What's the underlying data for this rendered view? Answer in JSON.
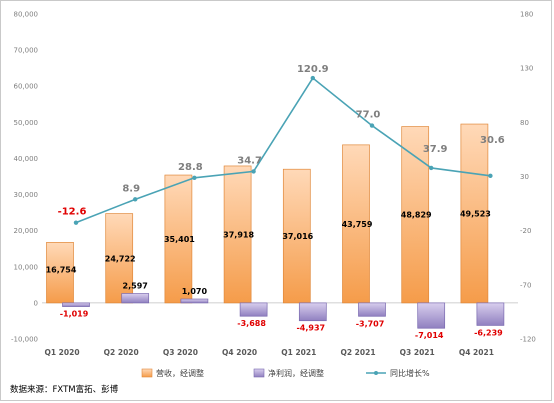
{
  "chart_data": {
    "type": "bar",
    "categories": [
      "Q1 2020",
      "Q2 2020",
      "Q3 2020",
      "Q4 2020",
      "Q1 2021",
      "Q2 2021",
      "Q3 2021",
      "Q4 2021"
    ],
    "series": [
      {
        "name": "营收，经调整",
        "kind": "bar",
        "axis": "left",
        "color": "#f4a460",
        "values": [
          16754,
          24722,
          35401,
          37918,
          37016,
          43759,
          48829,
          49523
        ]
      },
      {
        "name": "净利润，经调整",
        "kind": "bar",
        "axis": "left",
        "color": "#9b8ac4",
        "values": [
          -1019,
          2597,
          1070,
          -3688,
          -4937,
          -3707,
          -7014,
          -6239
        ]
      },
      {
        "name": "同比增长%",
        "kind": "line",
        "axis": "right",
        "color": "#4aa3b5",
        "values": [
          -12.6,
          8.9,
          28.8,
          34.7,
          120.9,
          77.0,
          37.9,
          30.6
        ]
      }
    ],
    "labels": {
      "revenue": [
        "16,754",
        "24,722",
        "35,401",
        "37,918",
        "37,016",
        "43,759",
        "48,829",
        "49,523"
      ],
      "net_profit": [
        "-1,019",
        "2,597",
        "1,070",
        "-3,688",
        "-4,937",
        "-3,707",
        "-7,014",
        "-6,239"
      ],
      "yoy": [
        "-12.6",
        "8.9",
        "28.8",
        "34.7",
        "120.9",
        "77.0",
        "37.9",
        "30.6"
      ]
    },
    "ylim_left": [
      -10000,
      80000
    ],
    "yticks_left": [
      "-10,000",
      "0",
      "10,000",
      "20,000",
      "30,000",
      "40,000",
      "50,000",
      "60,000",
      "70,000",
      "80,000"
    ],
    "ylim_right": [
      -120,
      180
    ],
    "yticks_right": [
      "-120",
      "-70",
      "-20",
      "30",
      "80",
      "130",
      "180"
    ],
    "legend_position": "bottom",
    "grid": false
  },
  "source_note": "数据来源：FXTM富拓、彭博"
}
